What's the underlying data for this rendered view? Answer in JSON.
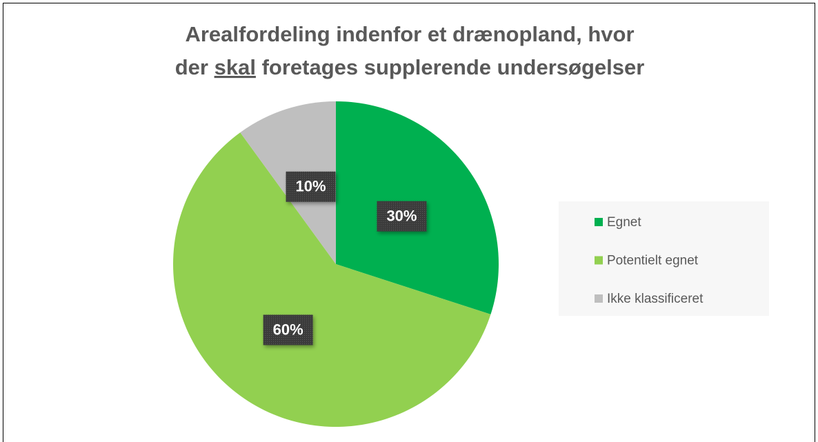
{
  "chart_data": {
    "type": "pie",
    "title": {
      "line1": "Arealfordeling indenfor et drænopland, hvor",
      "line2_start": "der",
      "line2_underlined": "skal",
      "line2_end": "foretages supplerende undersøgelser"
    },
    "categories": [
      "Egnet",
      "Potentielt egnet",
      "Ikke klassificeret"
    ],
    "values": [
      30,
      60,
      10
    ],
    "value_labels": [
      "30%",
      "60%",
      "10%"
    ],
    "colors": [
      "#00b050",
      "#92d050",
      "#bfbfbf"
    ],
    "legend": "right"
  }
}
